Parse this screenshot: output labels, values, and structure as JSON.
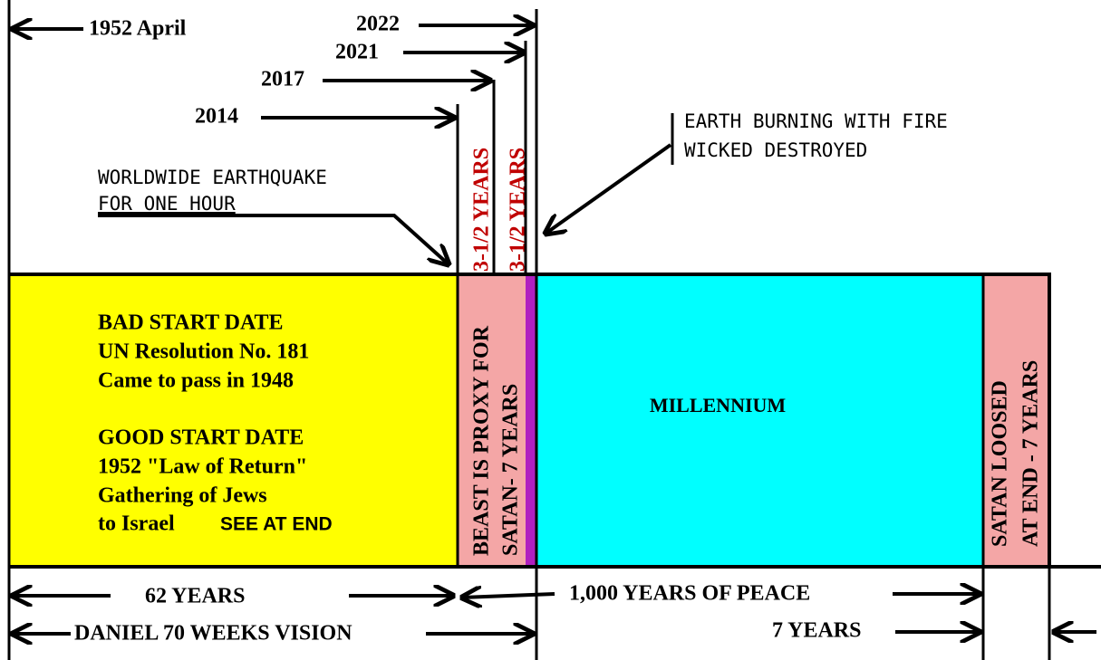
{
  "timeline": {
    "top_labels": {
      "april_1952": "1952 April",
      "y2022": "2022",
      "y2021": "2021",
      "y2017": "2017",
      "y2014": "2014"
    },
    "half_periods": [
      "3-1/2 YEARS",
      "3-1/2 YEARS"
    ],
    "earthquake": [
      "WORLDWIDE EARTHQUAKE",
      "FOR ONE HOUR"
    ],
    "fire": [
      "EARTH BURNING WITH FIRE",
      "WICKED DESTROYED"
    ],
    "start_box": {
      "lines": [
        "BAD START DATE",
        "UN Resolution No. 181",
        "Came to pass in 1948",
        "GOOD START DATE",
        "1952 \"Law of Return\"",
        "Gathering of Jews",
        "to Israel"
      ],
      "note": "SEE AT END"
    },
    "beast_box": [
      "BEAST IS PROXY FOR",
      "SATAN- 7 YEARS"
    ],
    "millennium": "MILLENNIUM",
    "satan_box": [
      "SATAN LOOSED",
      "AT END - 7 YEARS"
    ],
    "bottom": {
      "years_62": "62 YEARS",
      "peace": "1,000 YEARS OF PEACE",
      "daniel": "DANIEL 70 WEEKS VISION",
      "years_7": "7 YEARS"
    }
  }
}
